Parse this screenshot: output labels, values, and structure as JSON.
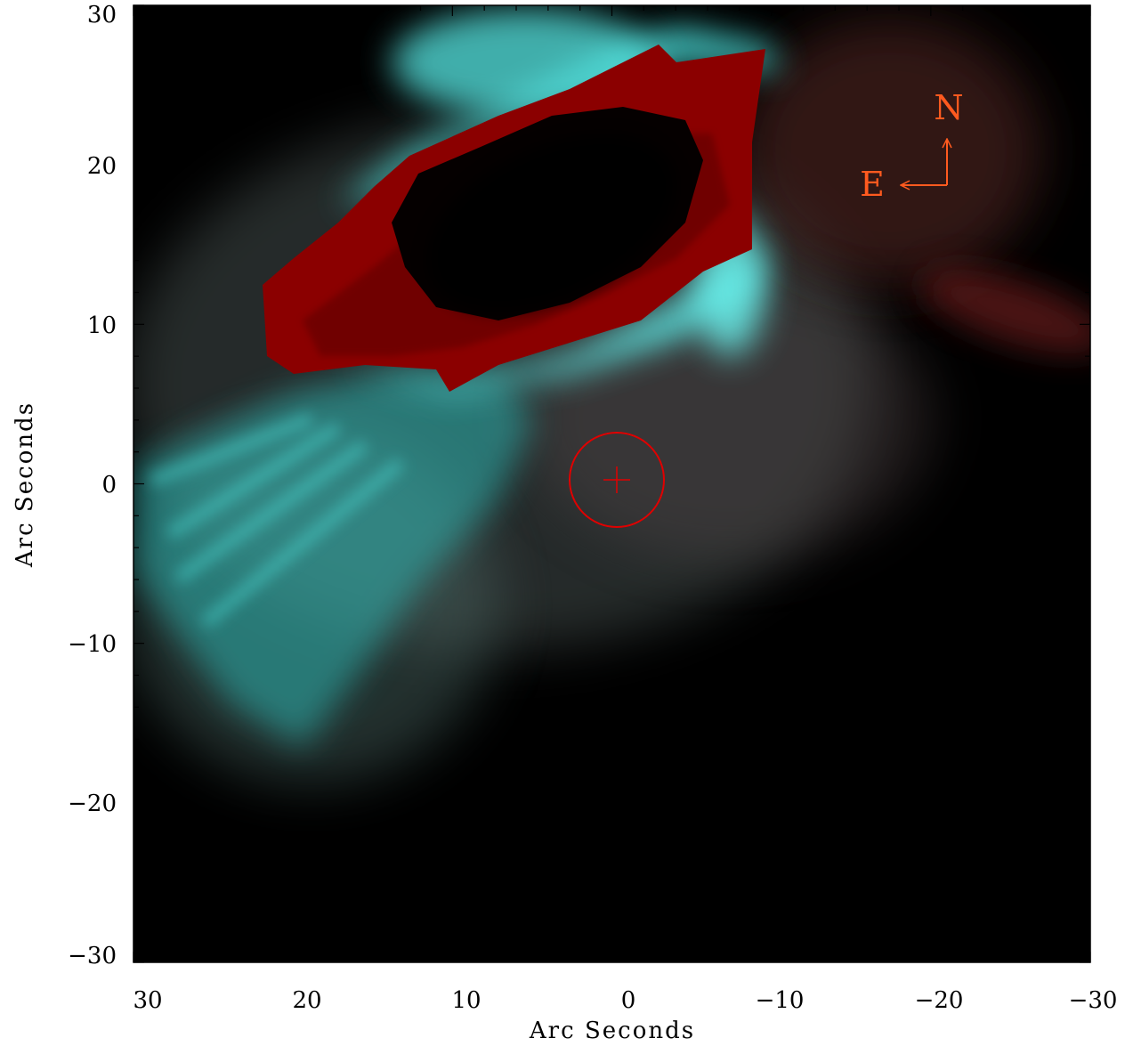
{
  "figure": {
    "xlabel": "Arc Seconds",
    "ylabel": "Arc Seconds",
    "x_range": [
      30,
      -30
    ],
    "y_range": [
      -30,
      30
    ],
    "major_ticks": [
      30,
      20,
      10,
      0,
      -10,
      -20,
      -30
    ],
    "x_tick_labels": [
      "30",
      "20",
      "10",
      "0",
      "−10",
      "−20",
      "−30"
    ],
    "y_tick_labels": [
      "30",
      "20",
      "10",
      "0",
      "−10",
      "−20",
      "−30"
    ]
  },
  "compass": {
    "north": "N",
    "east": "E",
    "color": "#ff5a1f"
  },
  "marker": {
    "x": 0,
    "y": 0.3,
    "radius": 3,
    "color": "#e00000"
  },
  "colors": {
    "background": "#000000",
    "cyan": "#40e8e6",
    "red": "#8b0000"
  }
}
